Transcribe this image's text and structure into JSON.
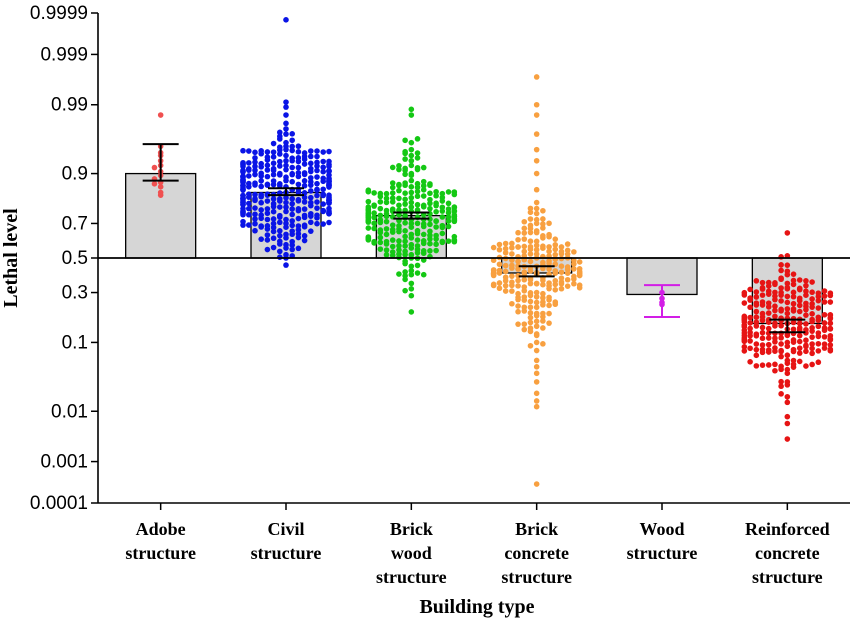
{
  "chart_data": {
    "type": "bar",
    "title": "",
    "xlabel": "Building type",
    "ylabel": "Lethal level",
    "y_scale": "probit",
    "ylim": [
      0.0001,
      0.9999
    ],
    "y_ticks": [
      0.0001,
      0.001,
      0.01,
      0.1,
      0.3,
      0.5,
      0.7,
      0.9,
      0.99,
      0.999,
      0.9999
    ],
    "y_tick_labels": [
      "0.0001",
      "0.001",
      "0.01",
      "0.1",
      "0.3",
      "0.5",
      "0.7",
      "0.9",
      "0.99",
      "0.999",
      "0.9999"
    ],
    "baseline": 0.5,
    "categories": [
      {
        "lines": [
          "Adobe",
          "structure"
        ],
        "bar": 0.9,
        "err_low": 0.88,
        "err_high": 0.958,
        "color": "#f05050",
        "spread": 0.4,
        "points": [
          0.985,
          0.955,
          0.945,
          0.94,
          0.93,
          0.92,
          0.915,
          0.905,
          0.895,
          0.885,
          0.875,
          0.87,
          0.86,
          0.84,
          0.83
        ]
      },
      {
        "lines": [
          "Civil",
          "structure"
        ],
        "bar": 0.84,
        "err_low": 0.83,
        "err_high": 0.855,
        "color": "#0a14e6",
        "spread": 0.62,
        "points": [
          0.99985,
          0.991,
          0.989,
          0.985,
          0.975,
          0.97,
          0.96,
          0.955,
          0.95,
          0.94,
          0.93,
          0.92,
          0.91,
          0.9,
          0.89,
          0.88,
          0.87,
          0.86,
          0.84,
          0.82,
          0.8,
          0.78,
          0.76,
          0.74,
          0.72,
          0.7,
          0.68,
          0.66,
          0.64,
          0.62,
          0.6,
          0.58,
          0.56,
          0.54,
          0.52,
          0.505,
          0.5
        ],
        "n": 320
      },
      {
        "lines": [
          "Brick",
          "wood",
          "structure"
        ],
        "bar": 0.74,
        "err_low": 0.725,
        "err_high": 0.755,
        "color": "#14c814",
        "spread": 0.62,
        "points": [
          0.988,
          0.985,
          0.96,
          0.95,
          0.94,
          0.93,
          0.92,
          0.9,
          0.88,
          0.86,
          0.84,
          0.82,
          0.8,
          0.78,
          0.76,
          0.74,
          0.72,
          0.7,
          0.68,
          0.66,
          0.64,
          0.62,
          0.6,
          0.58,
          0.56,
          0.54,
          0.52,
          0.5,
          0.48,
          0.45,
          0.4,
          0.35,
          0.32,
          0.31
        ],
        "n": 260
      },
      {
        "lines": [
          "Brick",
          "concrete",
          "structure"
        ],
        "bar": 0.41,
        "err_low": 0.39,
        "err_high": 0.45,
        "color": "#f8a040",
        "spread": 0.62,
        "points": [
          0.997,
          0.99,
          0.985,
          0.97,
          0.95,
          0.93,
          0.9,
          0.85,
          0.8,
          0.75,
          0.7,
          0.65,
          0.6,
          0.55,
          0.5,
          0.45,
          0.4,
          0.35,
          0.3,
          0.25,
          0.2,
          0.15,
          0.12,
          0.1,
          0.08,
          0.06,
          0.04,
          0.03,
          0.02,
          0.015,
          0.012,
          0.0003
        ],
        "n": 240
      },
      {
        "lines": [
          "Wood",
          "structure"
        ],
        "bar": 0.29,
        "err_low": 0.185,
        "err_high": 0.34,
        "color": "#d21ee6",
        "spread": 0.08,
        "points": [
          0.3,
          0.27,
          0.25,
          0.24
        ]
      },
      {
        "lines": [
          "Reinforced",
          "concrete",
          "structure"
        ],
        "bar": 0.16,
        "err_low": 0.13,
        "err_high": 0.175,
        "color": "#e61414",
        "spread": 0.62,
        "points": [
          0.4,
          0.38,
          0.35,
          0.32,
          0.3,
          0.28,
          0.25,
          0.22,
          0.2,
          0.18,
          0.16,
          0.14,
          0.12,
          0.1,
          0.09,
          0.08,
          0.07,
          0.06,
          0.055,
          0.05,
          0.04,
          0.03,
          0.008,
          0.006,
          0.003
        ],
        "n": 260
      }
    ]
  }
}
